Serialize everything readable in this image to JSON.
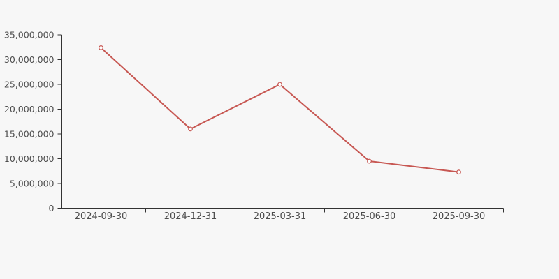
{
  "chart_data": {
    "type": "line",
    "categories": [
      "2024-09-30",
      "2024-12-31",
      "2025-03-31",
      "2025-06-30",
      "2025-09-30"
    ],
    "series": [
      {
        "name": "value",
        "values": [
          32400000,
          16000000,
          25000000,
          9500000,
          7300000
        ]
      }
    ],
    "title": "",
    "xlabel": "",
    "ylabel": "",
    "ylim": [
      0,
      35000000
    ],
    "y_tick_step": 5000000,
    "y_tick_labels": [
      "0",
      "5,000,000",
      "10,000,000",
      "15,000,000",
      "20,000,000",
      "25,000,000",
      "30,000,000",
      "35,000,000"
    ],
    "grid": false,
    "legend": false,
    "marker": "open-circle",
    "colors": {
      "background": "#f7f7f7",
      "line": "#c75752",
      "marker_fill": "#ffffff",
      "axis": "#333333",
      "label": "#4d4d4d"
    }
  }
}
